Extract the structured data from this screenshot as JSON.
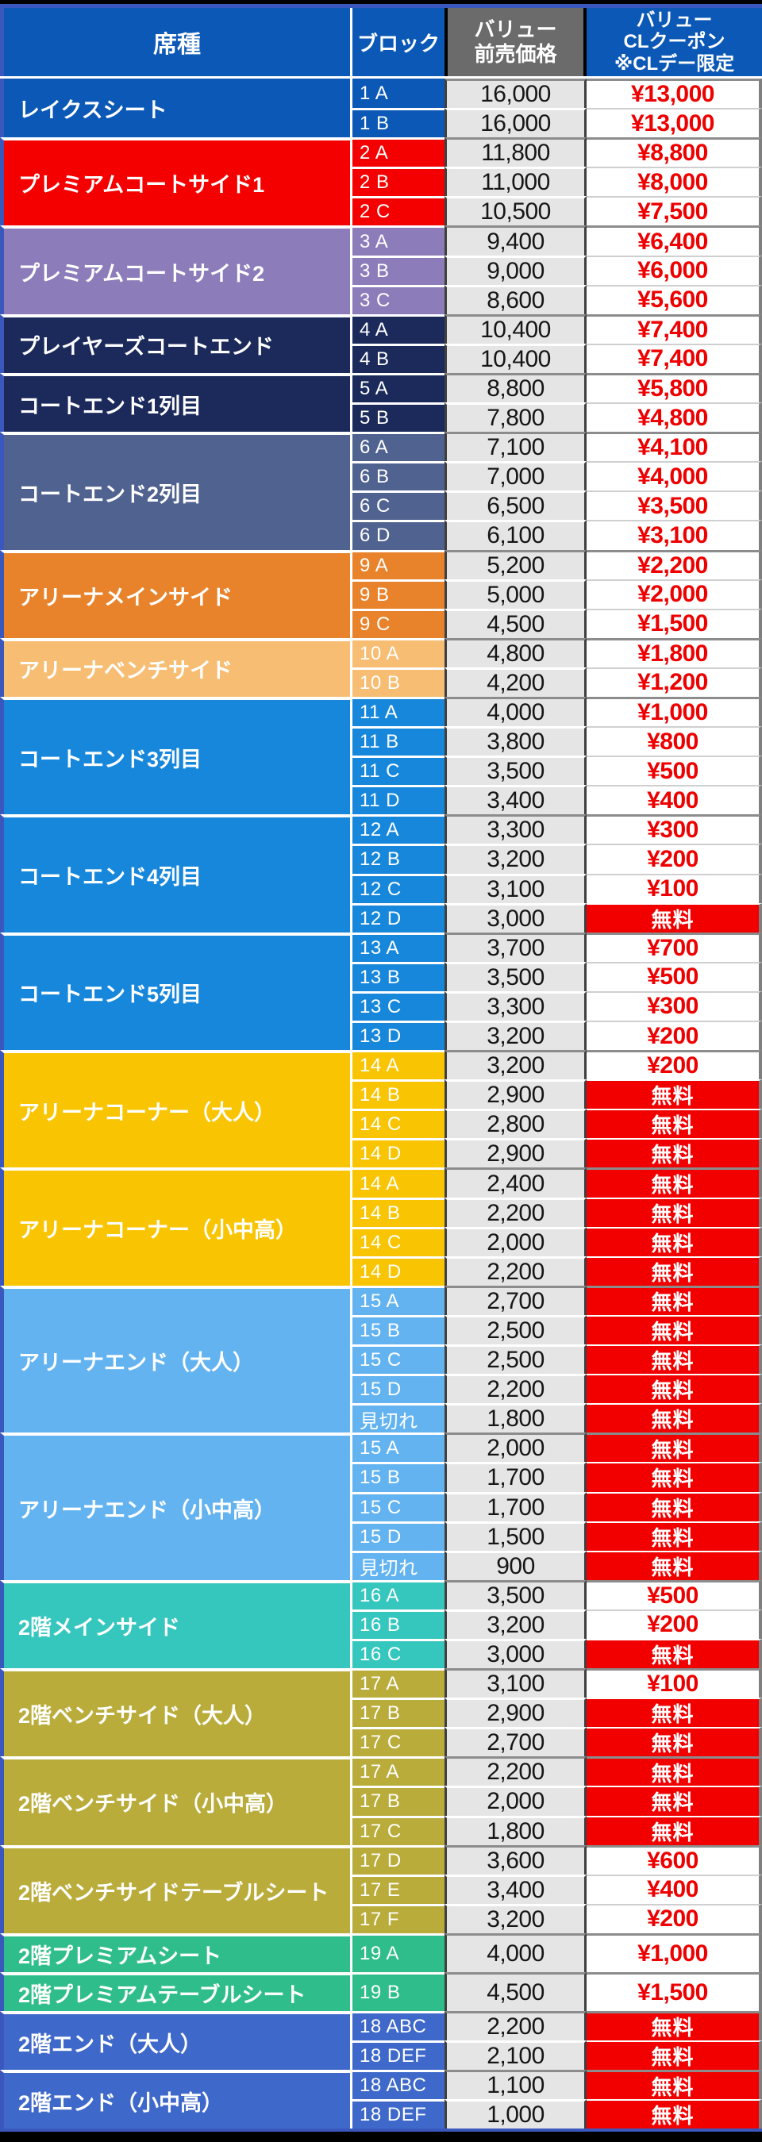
{
  "header": {
    "seat_type": "席種",
    "block": "ブロック",
    "advance_price": "バリュー\n前売価格",
    "coupon": "バリュー\nCLクーポン\n※CLデー限定"
  },
  "colors": {
    "outer_border_blue": "#3A57BD",
    "header_blue": "#0B58B6",
    "price_header_gray": "#6B6B6B",
    "price_cell_bg": "#E5E5E5",
    "price_text": "#161616",
    "coupon_text_red": "#EE0000",
    "free_bg_red": "#F20000",
    "free_text": "#FFFFFF"
  },
  "free_label": "無料",
  "groups": [
    {
      "name": "レイクスシート",
      "color": "#0B58B6",
      "rows": [
        {
          "block": "1 A",
          "price": "16,000",
          "coupon": "¥13,000"
        },
        {
          "block": "1 B",
          "price": "16,000",
          "coupon": "¥13,000"
        }
      ]
    },
    {
      "name": "プレミアムコートサイド1",
      "color": "#F40000",
      "rows": [
        {
          "block": "2 A",
          "price": "11,800",
          "coupon": "¥8,800"
        },
        {
          "block": "2 B",
          "price": "11,000",
          "coupon": "¥8,000"
        },
        {
          "block": "2 C",
          "price": "10,500",
          "coupon": "¥7,500"
        }
      ]
    },
    {
      "name": "プレミアムコートサイド2",
      "color": "#8C7CBA",
      "rows": [
        {
          "block": "3 A",
          "price": "9,400",
          "coupon": "¥6,400"
        },
        {
          "block": "3 B",
          "price": "9,000",
          "coupon": "¥6,000"
        },
        {
          "block": "3 C",
          "price": "8,600",
          "coupon": "¥5,600"
        }
      ]
    },
    {
      "name": "プレイヤーズコートエンド",
      "color": "#1B2A5B",
      "rows": [
        {
          "block": "4 A",
          "price": "10,400",
          "coupon": "¥7,400"
        },
        {
          "block": "4 B",
          "price": "10,400",
          "coupon": "¥7,400"
        }
      ]
    },
    {
      "name": "コートエンド1列目",
      "color": "#1B2A5B",
      "rows": [
        {
          "block": "5 A",
          "price": "8,800",
          "coupon": "¥5,800"
        },
        {
          "block": "5 B",
          "price": "7,800",
          "coupon": "¥4,800"
        }
      ]
    },
    {
      "name": "コートエンド2列目",
      "color": "#50628F",
      "rows": [
        {
          "block": "6 A",
          "price": "7,100",
          "coupon": "¥4,100"
        },
        {
          "block": "6 B",
          "price": "7,000",
          "coupon": "¥4,000"
        },
        {
          "block": "6 C",
          "price": "6,500",
          "coupon": "¥3,500"
        },
        {
          "block": "6 D",
          "price": "6,100",
          "coupon": "¥3,100"
        }
      ]
    },
    {
      "name": "アリーナメインサイド",
      "color": "#E8832C",
      "rows": [
        {
          "block": "9 A",
          "price": "5,200",
          "coupon": "¥2,200"
        },
        {
          "block": "9 B",
          "price": "5,000",
          "coupon": "¥2,000"
        },
        {
          "block": "9 C",
          "price": "4,500",
          "coupon": "¥1,500"
        }
      ]
    },
    {
      "name": "アリーナベンチサイド",
      "color": "#F7BD72",
      "rows": [
        {
          "block": "10 A",
          "price": "4,800",
          "coupon": "¥1,800"
        },
        {
          "block": "10 B",
          "price": "4,200",
          "coupon": "¥1,200"
        }
      ]
    },
    {
      "name": "コートエンド3列目",
      "color": "#1787DC",
      "rows": [
        {
          "block": "11 A",
          "price": "4,000",
          "coupon": "¥1,000"
        },
        {
          "block": "11 B",
          "price": "3,800",
          "coupon": "¥800"
        },
        {
          "block": "11 C",
          "price": "3,500",
          "coupon": "¥500"
        },
        {
          "block": "11 D",
          "price": "3,400",
          "coupon": "¥400"
        }
      ]
    },
    {
      "name": "コートエンド4列目",
      "color": "#1787DC",
      "rows": [
        {
          "block": "12 A",
          "price": "3,300",
          "coupon": "¥300"
        },
        {
          "block": "12 B",
          "price": "3,200",
          "coupon": "¥200"
        },
        {
          "block": "12 C",
          "price": "3,100",
          "coupon": "¥100"
        },
        {
          "block": "12 D",
          "price": "3,000",
          "coupon": "無料",
          "free": true
        }
      ]
    },
    {
      "name": "コートエンド5列目",
      "color": "#1787DC",
      "rows": [
        {
          "block": "13 A",
          "price": "3,700",
          "coupon": "¥700"
        },
        {
          "block": "13 B",
          "price": "3,500",
          "coupon": "¥500"
        },
        {
          "block": "13 C",
          "price": "3,300",
          "coupon": "¥300"
        },
        {
          "block": "13 D",
          "price": "3,200",
          "coupon": "¥200"
        }
      ]
    },
    {
      "name": "アリーナコーナー（大人）",
      "color": "#F9C502",
      "rows": [
        {
          "block": "14 A",
          "price": "3,200",
          "coupon": "¥200"
        },
        {
          "block": "14 B",
          "price": "2,900",
          "coupon": "無料",
          "free": true
        },
        {
          "block": "14 C",
          "price": "2,800",
          "coupon": "無料",
          "free": true
        },
        {
          "block": "14 D",
          "price": "2,900",
          "coupon": "無料",
          "free": true
        }
      ]
    },
    {
      "name": "アリーナコーナー（小中高）",
      "color": "#F9C502",
      "rows": [
        {
          "block": "14 A",
          "price": "2,400",
          "coupon": "無料",
          "free": true
        },
        {
          "block": "14 B",
          "price": "2,200",
          "coupon": "無料",
          "free": true
        },
        {
          "block": "14 C",
          "price": "2,000",
          "coupon": "無料",
          "free": true
        },
        {
          "block": "14 D",
          "price": "2,200",
          "coupon": "無料",
          "free": true
        }
      ]
    },
    {
      "name": "アリーナエンド（大人）",
      "color": "#63B3F1",
      "rows": [
        {
          "block": "15 A",
          "price": "2,700",
          "coupon": "無料",
          "free": true
        },
        {
          "block": "15 B",
          "price": "2,500",
          "coupon": "無料",
          "free": true
        },
        {
          "block": "15 C",
          "price": "2,500",
          "coupon": "無料",
          "free": true
        },
        {
          "block": "15 D",
          "price": "2,200",
          "coupon": "無料",
          "free": true
        },
        {
          "block": "見切れ",
          "price": "1,800",
          "coupon": "無料",
          "free": true
        }
      ]
    },
    {
      "name": "アリーナエンド（小中高）",
      "color": "#63B3F1",
      "rows": [
        {
          "block": "15 A",
          "price": "2,000",
          "coupon": "無料",
          "free": true
        },
        {
          "block": "15 B",
          "price": "1,700",
          "coupon": "無料",
          "free": true
        },
        {
          "block": "15 C",
          "price": "1,700",
          "coupon": "無料",
          "free": true
        },
        {
          "block": "15 D",
          "price": "1,500",
          "coupon": "無料",
          "free": true
        },
        {
          "block": "見切れ",
          "price": "900",
          "coupon": "無料",
          "free": true
        }
      ]
    },
    {
      "name": "2階メインサイド",
      "color": "#35C7BE",
      "rows": [
        {
          "block": "16 A",
          "price": "3,500",
          "coupon": "¥500"
        },
        {
          "block": "16 B",
          "price": "3,200",
          "coupon": "¥200"
        },
        {
          "block": "16 C",
          "price": "3,000",
          "coupon": "無料",
          "free": true
        }
      ]
    },
    {
      "name": "2階ベンチサイド（大人）",
      "color": "#B9AC3B",
      "rows": [
        {
          "block": "17 A",
          "price": "3,100",
          "coupon": "¥100"
        },
        {
          "block": "17 B",
          "price": "2,900",
          "coupon": "無料",
          "free": true
        },
        {
          "block": "17 C",
          "price": "2,700",
          "coupon": "無料",
          "free": true
        }
      ]
    },
    {
      "name": "2階ベンチサイド（小中高）",
      "color": "#B9AC3B",
      "rows": [
        {
          "block": "17 A",
          "price": "2,200",
          "coupon": "無料",
          "free": true
        },
        {
          "block": "17 B",
          "price": "2,000",
          "coupon": "無料",
          "free": true
        },
        {
          "block": "17 C",
          "price": "1,800",
          "coupon": "無料",
          "free": true
        }
      ]
    },
    {
      "name": "2階ベンチサイドテーブルシート",
      "color": "#B9AC3B",
      "rows": [
        {
          "block": "17 D",
          "price": "3,600",
          "coupon": "¥600"
        },
        {
          "block": "17 E",
          "price": "3,400",
          "coupon": "¥400"
        },
        {
          "block": "17 F",
          "price": "3,200",
          "coupon": "¥200"
        }
      ]
    },
    {
      "name": "2階プレミアムシート",
      "color": "#2FBE8B",
      "tall": true,
      "rows": [
        {
          "block": "19 A",
          "price": "4,000",
          "coupon": "¥1,000"
        }
      ]
    },
    {
      "name": "2階プレミアムテーブルシート",
      "color": "#2FBE8B",
      "tall": true,
      "rows": [
        {
          "block": "19 B",
          "price": "4,500",
          "coupon": "¥1,500"
        }
      ]
    },
    {
      "name": "2階エンド（大人）",
      "color": "#3E68C9",
      "rows": [
        {
          "block": "18 ABC",
          "price": "2,200",
          "coupon": "無料",
          "free": true
        },
        {
          "block": "18 DEF",
          "price": "2,100",
          "coupon": "無料",
          "free": true
        }
      ]
    },
    {
      "name": "2階エンド（小中高）",
      "color": "#3E68C9",
      "rows": [
        {
          "block": "18 ABC",
          "price": "1,100",
          "coupon": "無料",
          "free": true
        },
        {
          "block": "18 DEF",
          "price": "1,000",
          "coupon": "無料",
          "free": true
        }
      ]
    }
  ]
}
